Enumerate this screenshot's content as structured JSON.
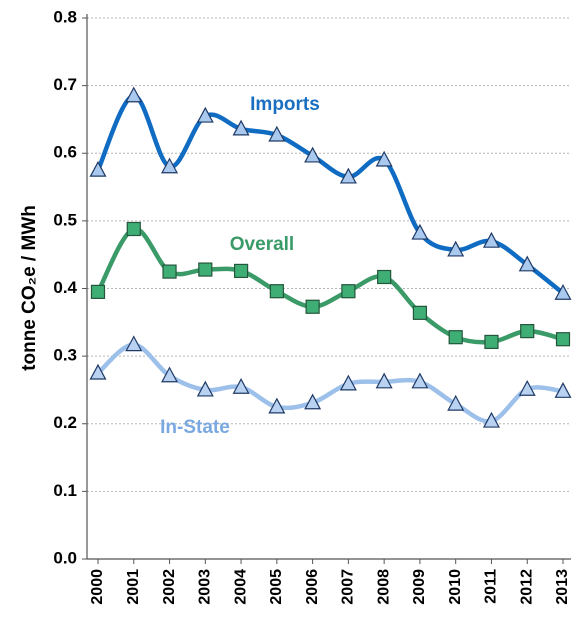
{
  "chart_data": {
    "type": "line",
    "y_label": "tonne CO₂e / MWh",
    "categories": [
      "2000",
      "2001",
      "2002",
      "2003",
      "2004",
      "2005",
      "2006",
      "2007",
      "2008",
      "2009",
      "2010",
      "2011",
      "2012",
      "2013"
    ],
    "ylim": [
      0,
      0.8
    ],
    "yticks": [
      {
        "value": 0,
        "label": "0.0"
      },
      0.1,
      0.2,
      0.3,
      0.4,
      0.5,
      0.6,
      0.7,
      0.8
    ],
    "grid": true,
    "smooth": true,
    "series": [
      {
        "name": "Imports",
        "color": "#0f6cc2",
        "marker": "triangle",
        "marker_color": "#a9c9ee",
        "values": [
          0.575,
          0.685,
          0.58,
          0.655,
          0.636,
          0.627,
          0.596,
          0.565,
          0.59,
          0.482,
          0.457,
          0.47,
          0.435,
          0.393
        ]
      },
      {
        "name": "Overall",
        "color": "#3a9a68",
        "marker": "square",
        "marker_color": "#3fae74",
        "values": [
          0.395,
          0.488,
          0.425,
          0.428,
          0.426,
          0.396,
          0.373,
          0.396,
          0.417,
          0.364,
          0.328,
          0.321,
          0.337,
          0.325
        ]
      },
      {
        "name": "In-State",
        "color": "#9cc0ea",
        "marker": "triangle",
        "marker_color": "#b9d2f1",
        "values": [
          0.275,
          0.317,
          0.271,
          0.25,
          0.254,
          0.225,
          0.231,
          0.259,
          0.262,
          0.262,
          0.229,
          0.204,
          0.251,
          0.248
        ]
      }
    ]
  }
}
